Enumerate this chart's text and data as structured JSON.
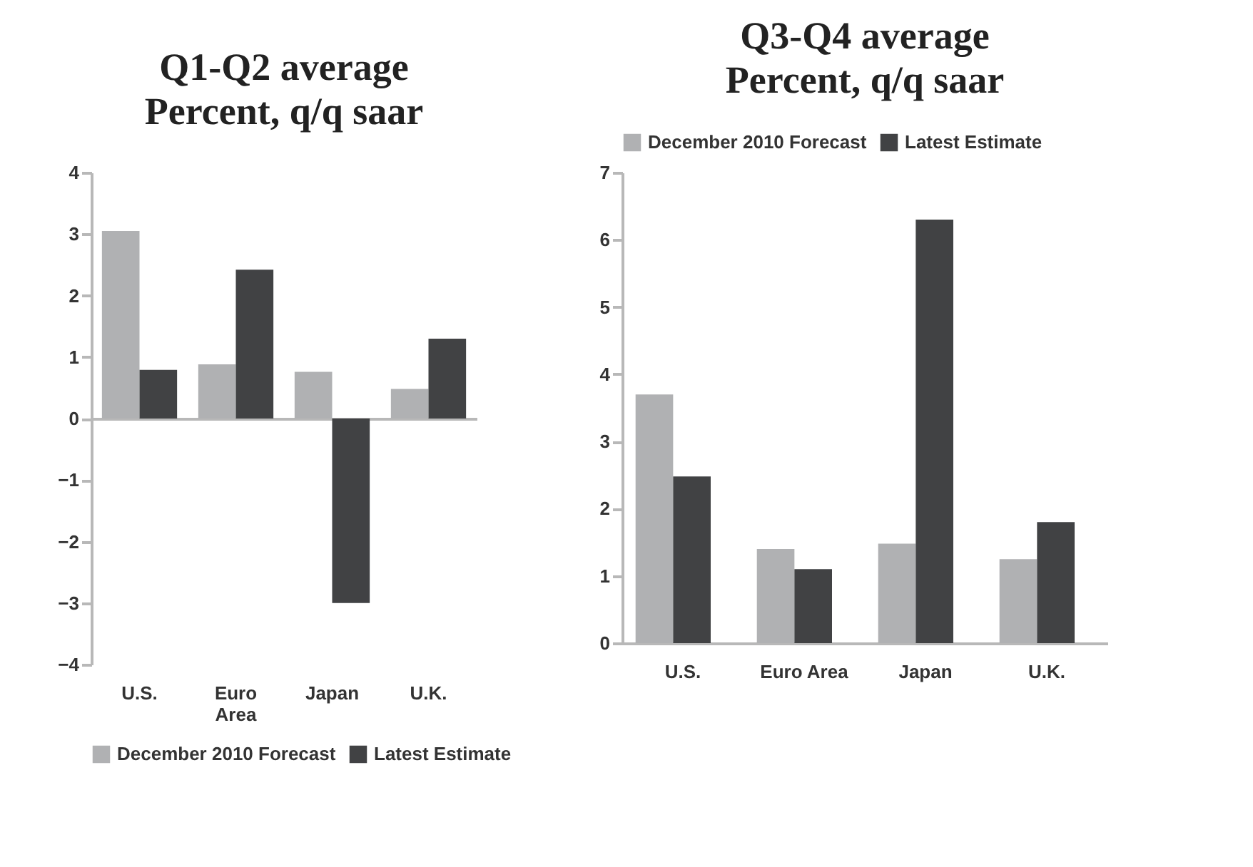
{
  "chart_data": [
    {
      "type": "bar",
      "title": "Q1-Q2 average",
      "subtitle": "Percent, q/q saar",
      "categories": [
        "U.S.",
        "Euro Area",
        "Japan",
        "U.K."
      ],
      "series": [
        {
          "name": "December 2010 Forecast",
          "color": "#b0b1b3",
          "values": [
            3.05,
            0.88,
            0.76,
            0.48
          ]
        },
        {
          "name": "Latest Estimate",
          "color": "#414244",
          "values": [
            0.79,
            2.42,
            -3.0,
            1.3
          ]
        }
      ],
      "ylim": [
        -4,
        4
      ],
      "yticks": [
        -4,
        -3,
        -2,
        -1,
        0,
        1,
        2,
        3,
        4
      ],
      "legend": "bottom"
    },
    {
      "type": "bar",
      "title": "Q3-Q4 average",
      "subtitle": "Percent, q/q saar",
      "categories": [
        "U.S.",
        "Euro Area",
        "Japan",
        "U.K."
      ],
      "series": [
        {
          "name": "December 2010 Forecast",
          "color": "#b0b1b3",
          "values": [
            3.7,
            1.4,
            1.48,
            1.25
          ]
        },
        {
          "name": "Latest Estimate",
          "color": "#414244",
          "values": [
            2.48,
            1.1,
            6.3,
            1.8
          ]
        }
      ],
      "ylim": [
        0,
        7
      ],
      "yticks": [
        0,
        1,
        2,
        3,
        4,
        5,
        6,
        7
      ],
      "legend": "top"
    }
  ]
}
